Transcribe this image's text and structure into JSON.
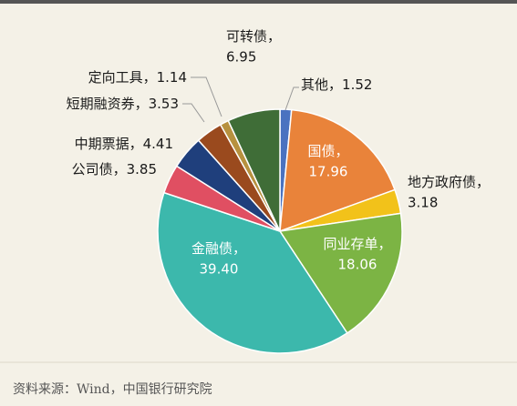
{
  "chart_data": {
    "type": "pie",
    "categories": [
      "其他",
      "国债",
      "地方政府债",
      "同业存单",
      "金融债",
      "公司债",
      "中期票据",
      "短期融资券",
      "定向工具",
      "可转债"
    ],
    "values": [
      1.52,
      17.96,
      3.18,
      18.06,
      39.4,
      3.85,
      4.41,
      3.53,
      1.14,
      6.95
    ],
    "value_labels": [
      "1.52",
      "17.96",
      "3.18",
      "18.06",
      "39.40",
      "3.85",
      "4.41",
      "3.53",
      "1.14",
      "6.95"
    ],
    "separator": "，",
    "colors": [
      "#4a72c0",
      "#e9833a",
      "#f2c21a",
      "#7cb444",
      "#3cb8ac",
      "#e04f62",
      "#1f3f7c",
      "#9a4a1e",
      "#b7913f",
      "#3f6d37"
    ],
    "source": "资料来源：Wind，中国银行研究院"
  }
}
